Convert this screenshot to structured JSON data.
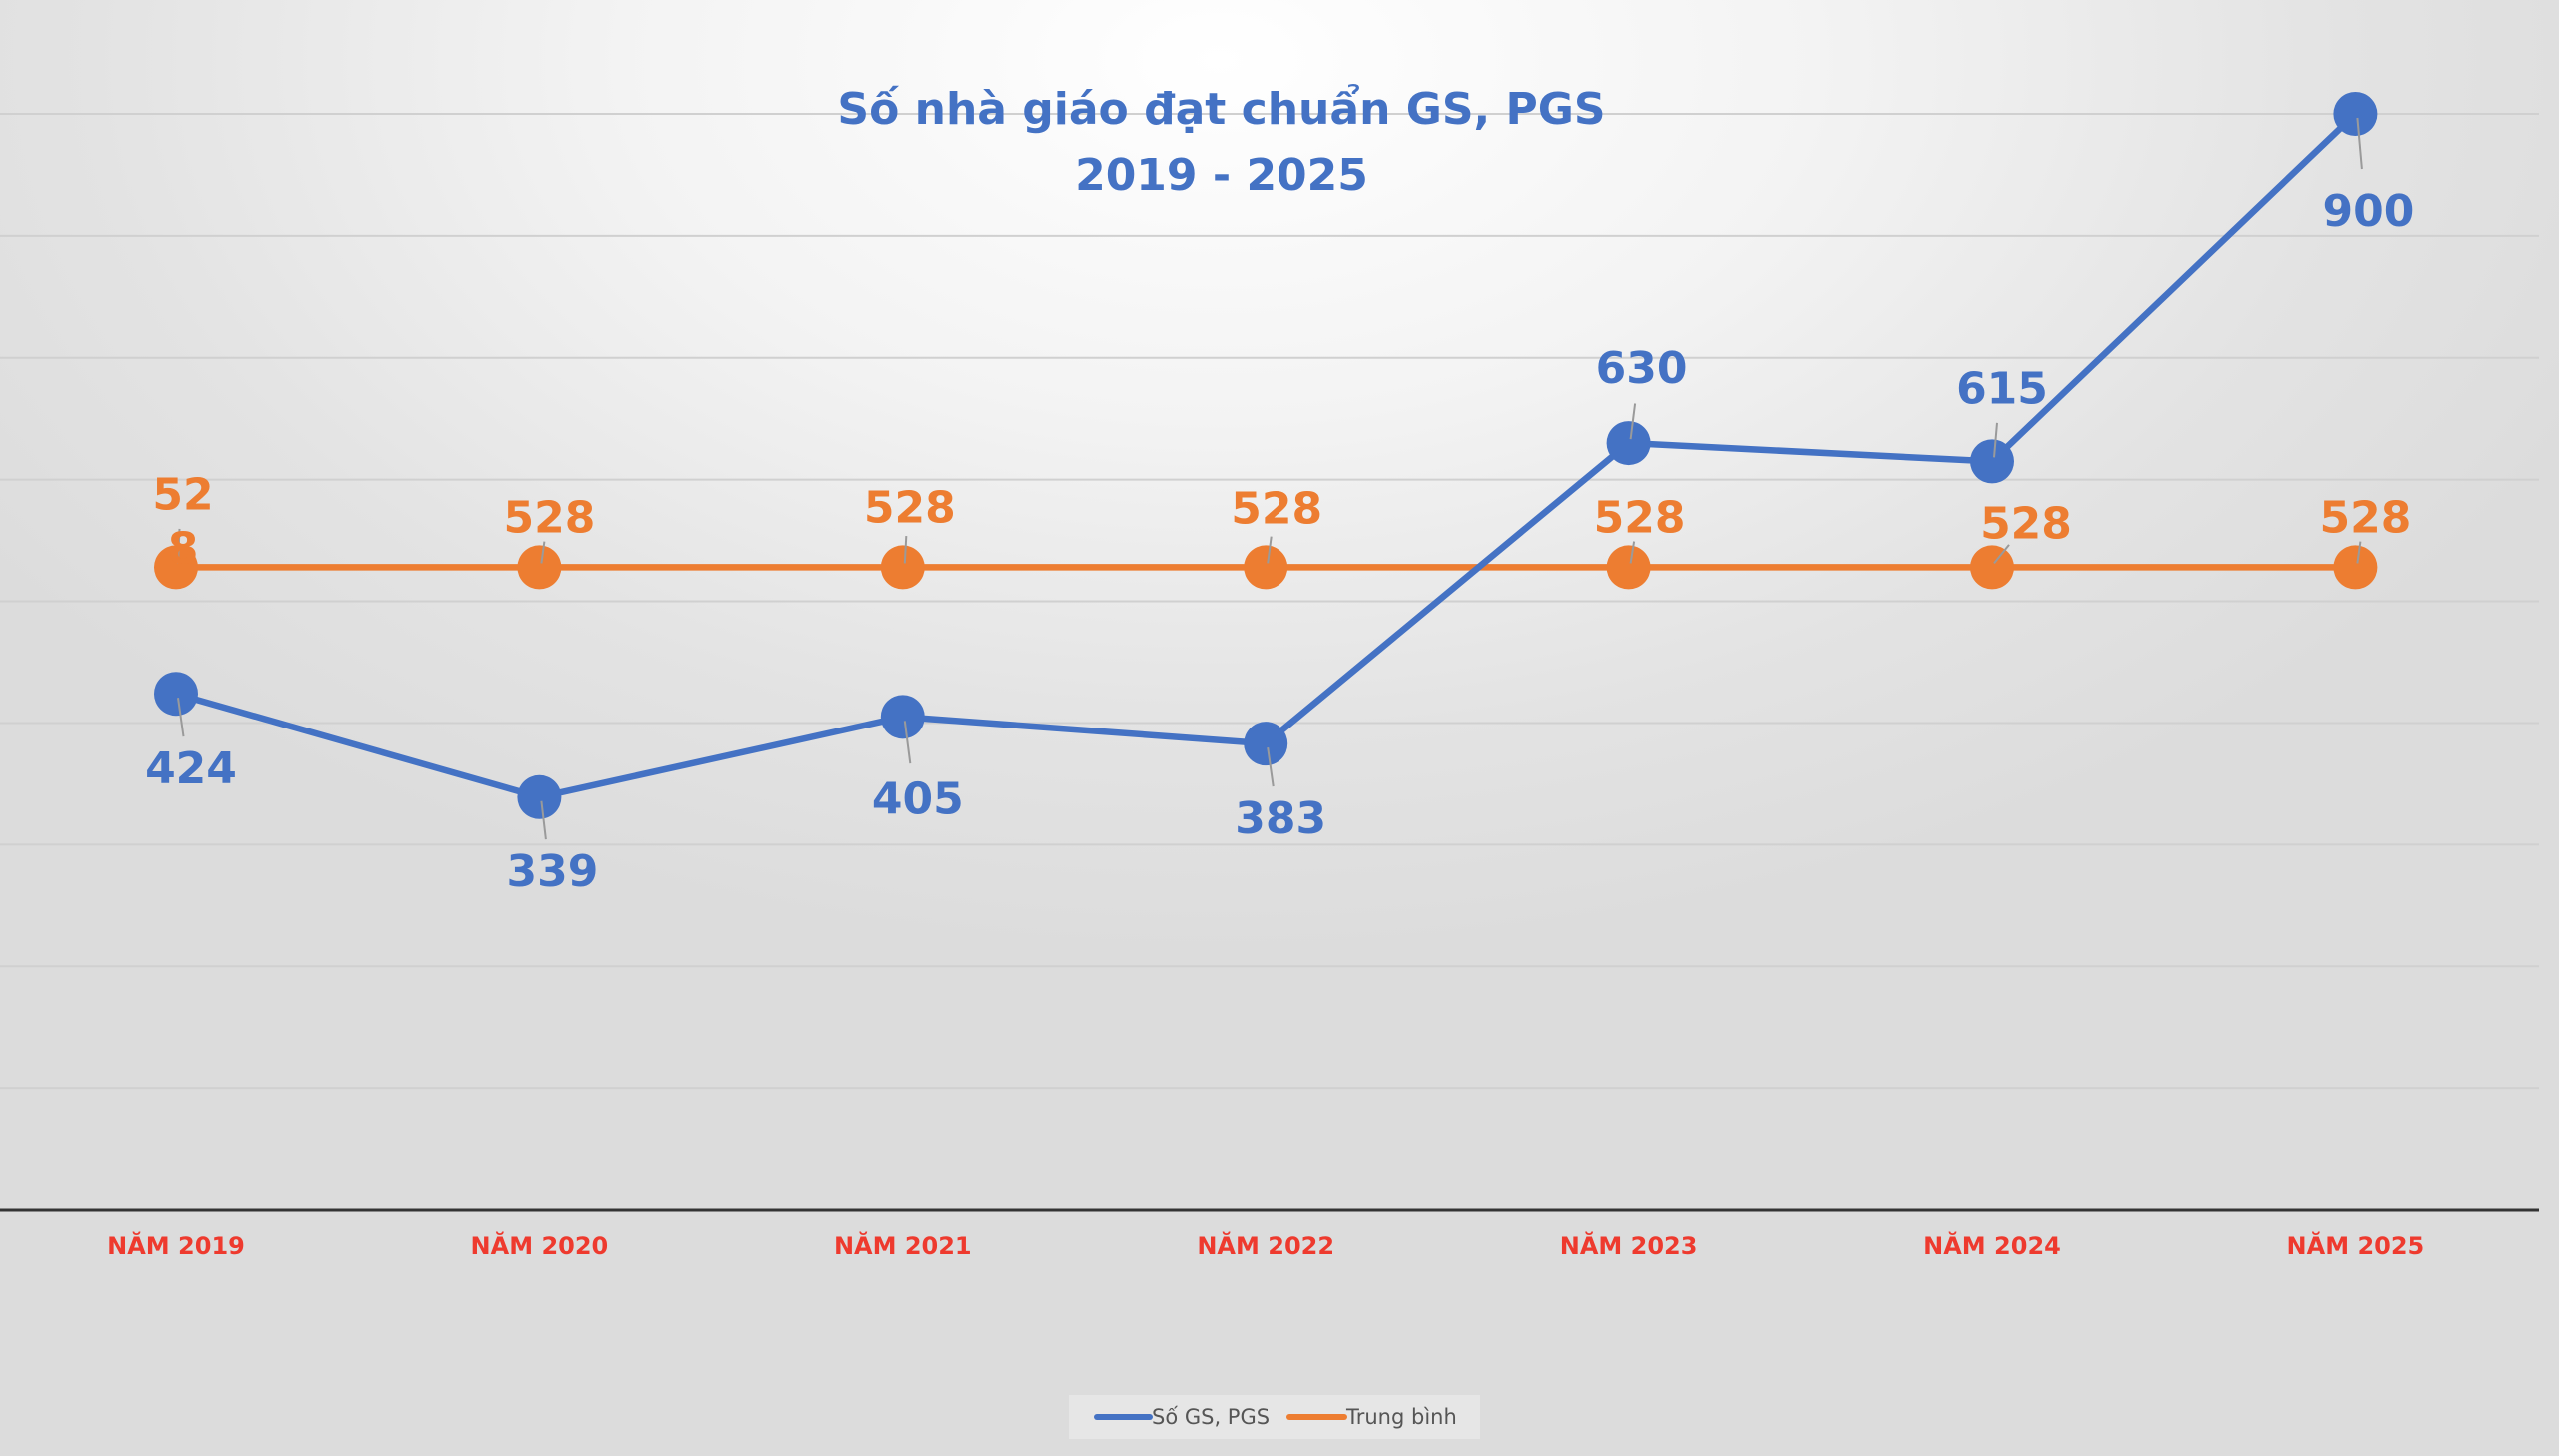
{
  "chart_data": {
    "type": "line",
    "title": "Số nhà giáo đạt chuẩn GS, PGS",
    "subtitle": "2019 - 2025",
    "categories": [
      "NĂM 2019",
      "NĂM 2020",
      "NĂM 2021",
      "NĂM 2022",
      "NĂM 2023",
      "NĂM 2024",
      "NĂM 2025"
    ],
    "series": [
      {
        "name": "Số GS, PGS",
        "color": "#4472c4",
        "values": [
          424,
          339,
          405,
          383,
          630,
          615,
          900
        ]
      },
      {
        "name": "Trung bình",
        "color": "#ed7d31",
        "values": [
          528,
          528,
          528,
          528,
          528,
          528,
          528
        ]
      }
    ],
    "ylim": [
      0,
      1000
    ],
    "y_gridline_step": 100,
    "y_tick_labels_shown": false,
    "grid": true,
    "data_labels": true,
    "legend": "bottom",
    "xlabel": "",
    "ylabel": ""
  }
}
